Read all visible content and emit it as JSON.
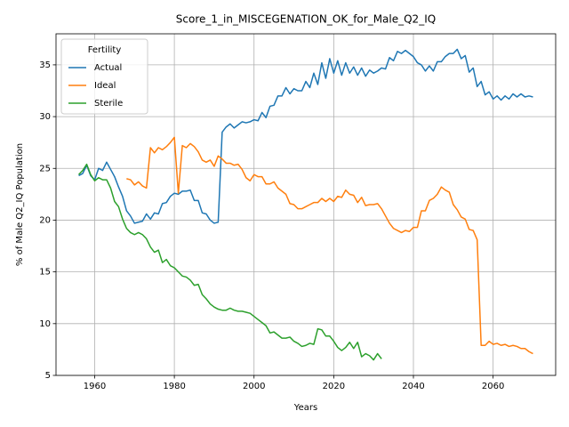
{
  "chart_data": {
    "type": "line",
    "title": "Score_1_in_MISCEGENATION_OK_for_Male_Q2_IQ",
    "xlabel": "Years",
    "ylabel": "% of Male Q2_IQ Population",
    "legend_title": "Fertility",
    "legend_loc": "upper left",
    "grid": true,
    "xlim": [
      1950.3,
      2075.7
    ],
    "ylim": [
      5.0,
      38.0
    ],
    "xticks": [
      1960,
      1980,
      2000,
      2020,
      2040,
      2060
    ],
    "yticks": [
      5,
      10,
      15,
      20,
      25,
      30,
      35
    ],
    "x": [
      1956,
      1957,
      1958,
      1959,
      1960,
      1961,
      1962,
      1963,
      1964,
      1965,
      1966,
      1967,
      1968,
      1969,
      1970,
      1971,
      1972,
      1973,
      1974,
      1975,
      1976,
      1977,
      1978,
      1979,
      1980,
      1981,
      1982,
      1983,
      1984,
      1985,
      1986,
      1987,
      1988,
      1989,
      1990,
      1991,
      1992,
      1993,
      1994,
      1995,
      1996,
      1997,
      1998,
      1999,
      2000,
      2001,
      2002,
      2003,
      2004,
      2005,
      2006,
      2007,
      2008,
      2009,
      2010,
      2011,
      2012,
      2013,
      2014,
      2015,
      2016,
      2017,
      2018,
      2019,
      2020,
      2021,
      2022,
      2023,
      2024,
      2025,
      2026,
      2027,
      2028,
      2029,
      2030,
      2031,
      2032,
      2033,
      2034,
      2035,
      2036,
      2037,
      2038,
      2039,
      2040,
      2041,
      2042,
      2043,
      2044,
      2045,
      2046,
      2047,
      2048,
      2049,
      2050,
      2051,
      2052,
      2053,
      2054,
      2055,
      2056,
      2057,
      2058,
      2059,
      2060,
      2061,
      2062,
      2063,
      2064,
      2065,
      2066,
      2067,
      2068,
      2069,
      2070
    ],
    "series": [
      {
        "name": "Actual",
        "color": "#1f77b4",
        "values": [
          24.3,
          24.5,
          25.3,
          24.3,
          23.9,
          25.0,
          24.8,
          25.6,
          24.9,
          24.2,
          23.2,
          22.3,
          20.9,
          20.4,
          19.7,
          19.8,
          19.9,
          20.6,
          20.1,
          20.7,
          20.6,
          21.6,
          21.7,
          22.3,
          22.6,
          22.5,
          22.8,
          22.8,
          22.9,
          21.9,
          21.9,
          20.7,
          20.6,
          20.0,
          19.7,
          19.8,
          28.5,
          29.0,
          29.3,
          28.9,
          29.2,
          29.5,
          29.4,
          29.5,
          29.7,
          29.6,
          30.4,
          29.9,
          31.0,
          31.1,
          32.0,
          32.0,
          32.8,
          32.2,
          32.7,
          32.5,
          32.5,
          33.4,
          32.8,
          34.2,
          33.1,
          35.2,
          33.7,
          35.6,
          34.2,
          35.4,
          34.0,
          35.2,
          34.2,
          34.8,
          34.0,
          34.7,
          33.9,
          34.5,
          34.2,
          34.4,
          34.7,
          34.6,
          35.7,
          35.4,
          36.3,
          36.1,
          36.4,
          36.1,
          35.8,
          35.2,
          35.0,
          34.4,
          34.9,
          34.4,
          35.3,
          35.3,
          35.8,
          36.1,
          36.1,
          36.5,
          35.6,
          35.9,
          34.3,
          34.7,
          32.9,
          33.4,
          32.1,
          32.4,
          31.7,
          32.0,
          31.6,
          32.0,
          31.7,
          32.2,
          31.9,
          32.2,
          31.9,
          32.0,
          31.9
        ]
      },
      {
        "name": "Ideal",
        "color": "#ff7f0e",
        "values": [
          null,
          null,
          null,
          null,
          null,
          null,
          null,
          null,
          null,
          null,
          null,
          null,
          24.0,
          23.9,
          23.4,
          23.7,
          23.3,
          23.1,
          27.0,
          26.5,
          27.0,
          26.8,
          27.1,
          27.5,
          28.0,
          22.6,
          27.2,
          27.0,
          27.4,
          27.1,
          26.6,
          25.8,
          25.6,
          25.8,
          25.2,
          26.2,
          25.9,
          25.5,
          25.5,
          25.3,
          25.4,
          24.9,
          24.1,
          23.8,
          24.4,
          24.2,
          24.2,
          23.5,
          23.5,
          23.7,
          23.1,
          22.8,
          22.5,
          21.6,
          21.5,
          21.1,
          21.1,
          21.3,
          21.5,
          21.7,
          21.7,
          22.1,
          21.8,
          22.1,
          21.8,
          22.3,
          22.2,
          22.9,
          22.5,
          22.4,
          21.7,
          22.2,
          21.4,
          21.5,
          21.5,
          21.6,
          21.1,
          20.4,
          19.7,
          19.2,
          19.0,
          18.8,
          19.0,
          18.9,
          19.3,
          19.3,
          20.9,
          20.9,
          21.9,
          22.1,
          22.5,
          23.2,
          22.9,
          22.7,
          21.5,
          21.0,
          20.3,
          20.1,
          19.1,
          19.0,
          18.1,
          7.9,
          7.9,
          8.3,
          8.0,
          8.1,
          7.9,
          8.0,
          7.8,
          7.9,
          7.8,
          7.6,
          7.6,
          7.3,
          7.1
        ]
      },
      {
        "name": "Sterile",
        "color": "#2ca02c",
        "values": [
          24.4,
          24.8,
          25.4,
          24.4,
          23.8,
          24.1,
          23.9,
          23.9,
          23.1,
          21.8,
          21.3,
          20.1,
          19.2,
          18.8,
          18.6,
          18.8,
          18.6,
          18.2,
          17.4,
          16.9,
          17.1,
          15.9,
          16.2,
          15.6,
          15.4,
          15.0,
          14.6,
          14.5,
          14.2,
          13.7,
          13.8,
          12.8,
          12.4,
          11.9,
          11.6,
          11.4,
          11.3,
          11.3,
          11.5,
          11.3,
          11.2,
          11.2,
          11.1,
          11.0,
          10.7,
          10.4,
          10.1,
          9.8,
          9.1,
          9.2,
          8.9,
          8.6,
          8.6,
          8.7,
          8.3,
          8.1,
          7.8,
          7.9,
          8.1,
          8.0,
          9.5,
          9.4,
          8.8,
          8.8,
          8.3,
          7.7,
          7.4,
          7.7,
          8.2,
          7.6,
          8.2,
          6.8,
          7.1,
          6.9,
          6.5,
          7.1,
          6.6,
          null,
          null,
          null,
          null,
          null,
          null,
          null,
          null,
          null,
          null,
          null,
          null,
          null,
          null,
          null,
          null,
          null,
          null,
          null,
          null,
          null,
          null,
          null,
          null,
          null,
          null,
          null,
          null,
          null,
          null,
          null,
          null,
          null,
          null,
          null,
          null,
          null,
          null
        ]
      }
    ]
  }
}
